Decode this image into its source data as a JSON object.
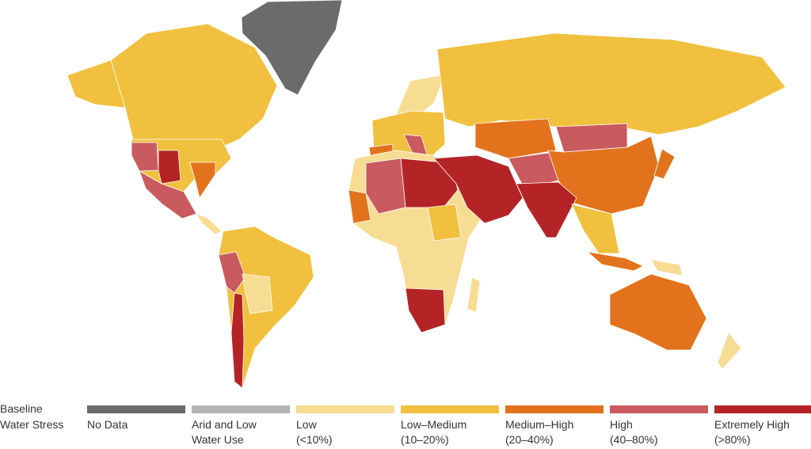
{
  "legend": {
    "title": [
      "Baseline",
      "Water Stress"
    ],
    "items": [
      {
        "lines": [
          "No Data"
        ],
        "color": "#6b6b6b"
      },
      {
        "lines": [
          "Arid and Low",
          "Water Use"
        ],
        "color": "#b4b4b4"
      },
      {
        "lines": [
          "Low",
          "(<10%)"
        ],
        "color": "#f7dc94"
      },
      {
        "lines": [
          "Low–Medium",
          "(10–20%)"
        ],
        "color": "#f0c03e"
      },
      {
        "lines": [
          "Medium–High",
          "(20–40%)"
        ],
        "color": "#e2731c"
      },
      {
        "lines": [
          "High",
          "(40–80%)"
        ],
        "color": "#c95a60"
      },
      {
        "lines": [
          "Extremely High",
          "(>80%)"
        ],
        "color": "#b42426"
      }
    ]
  }
}
